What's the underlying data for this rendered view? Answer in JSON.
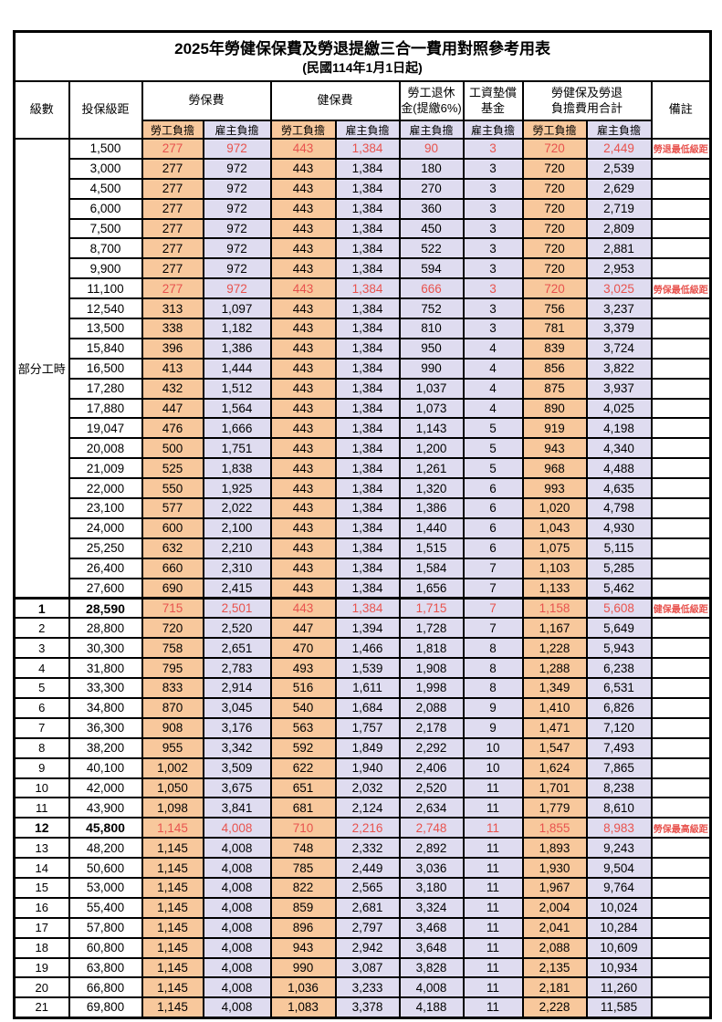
{
  "title": "2025年勞健保保費及勞退提繳三合一費用對照參考用表",
  "subtitle": "(民國114年1月1日起)",
  "header": {
    "level": "級數",
    "bracket": "投保級距",
    "labor_ins": "勞保費",
    "health_ins": "健保費",
    "pension_line1": "勞工退休",
    "pension_line2": "金(提繳6%)",
    "wage_fund_line1": "工資墊償",
    "wage_fund_line2": "基金",
    "total_line1": "勞健保及勞退",
    "total_line2": "負擔費用合計",
    "remarks": "備註",
    "employee": "勞工負擔",
    "employer": "雇主負擔"
  },
  "colors": {
    "employee_bg": "#F8C89C",
    "employer_bg": "#DFDCF0",
    "highlight_text": "#E8534E"
  },
  "part_time_label": "部分工時",
  "part_time_rowspan": 23,
  "rows": [
    {
      "level": "",
      "bracket": "1,500",
      "values": [
        "277",
        "972",
        "443",
        "1,384",
        "90",
        "3",
        "720",
        "2,449"
      ],
      "remark": "勞退最低級距",
      "highlight": true,
      "bold": false,
      "thick_top": false
    },
    {
      "level": "",
      "bracket": "3,000",
      "values": [
        "277",
        "972",
        "443",
        "1,384",
        "180",
        "3",
        "720",
        "2,539"
      ],
      "remark": "",
      "highlight": false,
      "bold": false,
      "thick_top": false
    },
    {
      "level": "",
      "bracket": "4,500",
      "values": [
        "277",
        "972",
        "443",
        "1,384",
        "270",
        "3",
        "720",
        "2,629"
      ],
      "remark": "",
      "highlight": false,
      "bold": false,
      "thick_top": false
    },
    {
      "level": "",
      "bracket": "6,000",
      "values": [
        "277",
        "972",
        "443",
        "1,384",
        "360",
        "3",
        "720",
        "2,719"
      ],
      "remark": "",
      "highlight": false,
      "bold": false,
      "thick_top": false
    },
    {
      "level": "",
      "bracket": "7,500",
      "values": [
        "277",
        "972",
        "443",
        "1,384",
        "450",
        "3",
        "720",
        "2,809"
      ],
      "remark": "",
      "highlight": false,
      "bold": false,
      "thick_top": false
    },
    {
      "level": "",
      "bracket": "8,700",
      "values": [
        "277",
        "972",
        "443",
        "1,384",
        "522",
        "3",
        "720",
        "2,881"
      ],
      "remark": "",
      "highlight": false,
      "bold": false,
      "thick_top": false
    },
    {
      "level": "",
      "bracket": "9,900",
      "values": [
        "277",
        "972",
        "443",
        "1,384",
        "594",
        "3",
        "720",
        "2,953"
      ],
      "remark": "",
      "highlight": false,
      "bold": false,
      "thick_top": false
    },
    {
      "level": "",
      "bracket": "11,100",
      "values": [
        "277",
        "972",
        "443",
        "1,384",
        "666",
        "3",
        "720",
        "3,025"
      ],
      "remark": "勞保最低級距",
      "highlight": true,
      "bold": false,
      "thick_top": false
    },
    {
      "level": "",
      "bracket": "12,540",
      "values": [
        "313",
        "1,097",
        "443",
        "1,384",
        "752",
        "3",
        "756",
        "3,237"
      ],
      "remark": "",
      "highlight": false,
      "bold": false,
      "thick_top": false
    },
    {
      "level": "",
      "bracket": "13,500",
      "values": [
        "338",
        "1,182",
        "443",
        "1,384",
        "810",
        "3",
        "781",
        "3,379"
      ],
      "remark": "",
      "highlight": false,
      "bold": false,
      "thick_top": false
    },
    {
      "level": "",
      "bracket": "15,840",
      "values": [
        "396",
        "1,386",
        "443",
        "1,384",
        "950",
        "4",
        "839",
        "3,724"
      ],
      "remark": "",
      "highlight": false,
      "bold": false,
      "thick_top": false
    },
    {
      "level": "",
      "bracket": "16,500",
      "values": [
        "413",
        "1,444",
        "443",
        "1,384",
        "990",
        "4",
        "856",
        "3,822"
      ],
      "remark": "",
      "highlight": false,
      "bold": false,
      "thick_top": false
    },
    {
      "level": "",
      "bracket": "17,280",
      "values": [
        "432",
        "1,512",
        "443",
        "1,384",
        "1,037",
        "4",
        "875",
        "3,937"
      ],
      "remark": "",
      "highlight": false,
      "bold": false,
      "thick_top": false
    },
    {
      "level": "",
      "bracket": "17,880",
      "values": [
        "447",
        "1,564",
        "443",
        "1,384",
        "1,073",
        "4",
        "890",
        "4,025"
      ],
      "remark": "",
      "highlight": false,
      "bold": false,
      "thick_top": false
    },
    {
      "level": "",
      "bracket": "19,047",
      "values": [
        "476",
        "1,666",
        "443",
        "1,384",
        "1,143",
        "5",
        "919",
        "4,198"
      ],
      "remark": "",
      "highlight": false,
      "bold": false,
      "thick_top": false
    },
    {
      "level": "",
      "bracket": "20,008",
      "values": [
        "500",
        "1,751",
        "443",
        "1,384",
        "1,200",
        "5",
        "943",
        "4,340"
      ],
      "remark": "",
      "highlight": false,
      "bold": false,
      "thick_top": false
    },
    {
      "level": "",
      "bracket": "21,009",
      "values": [
        "525",
        "1,838",
        "443",
        "1,384",
        "1,261",
        "5",
        "968",
        "4,488"
      ],
      "remark": "",
      "highlight": false,
      "bold": false,
      "thick_top": false
    },
    {
      "level": "",
      "bracket": "22,000",
      "values": [
        "550",
        "1,925",
        "443",
        "1,384",
        "1,320",
        "6",
        "993",
        "4,635"
      ],
      "remark": "",
      "highlight": false,
      "bold": false,
      "thick_top": false
    },
    {
      "level": "",
      "bracket": "23,100",
      "values": [
        "577",
        "2,022",
        "443",
        "1,384",
        "1,386",
        "6",
        "1,020",
        "4,798"
      ],
      "remark": "",
      "highlight": false,
      "bold": false,
      "thick_top": false
    },
    {
      "level": "",
      "bracket": "24,000",
      "values": [
        "600",
        "2,100",
        "443",
        "1,384",
        "1,440",
        "6",
        "1,043",
        "4,930"
      ],
      "remark": "",
      "highlight": false,
      "bold": false,
      "thick_top": false
    },
    {
      "level": "",
      "bracket": "25,250",
      "values": [
        "632",
        "2,210",
        "443",
        "1,384",
        "1,515",
        "6",
        "1,075",
        "5,115"
      ],
      "remark": "",
      "highlight": false,
      "bold": false,
      "thick_top": false
    },
    {
      "level": "",
      "bracket": "26,400",
      "values": [
        "660",
        "2,310",
        "443",
        "1,384",
        "1,584",
        "7",
        "1,103",
        "5,285"
      ],
      "remark": "",
      "highlight": false,
      "bold": false,
      "thick_top": false
    },
    {
      "level": "",
      "bracket": "27,600",
      "values": [
        "690",
        "2,415",
        "443",
        "1,384",
        "1,656",
        "7",
        "1,133",
        "5,462"
      ],
      "remark": "",
      "highlight": false,
      "bold": false,
      "thick_top": false
    },
    {
      "level": "1",
      "bracket": "28,590",
      "values": [
        "715",
        "2,501",
        "443",
        "1,384",
        "1,715",
        "7",
        "1,158",
        "5,608"
      ],
      "remark": "健保最低級距",
      "highlight": true,
      "bold": true,
      "thick_top": true
    },
    {
      "level": "2",
      "bracket": "28,800",
      "values": [
        "720",
        "2,520",
        "447",
        "1,394",
        "1,728",
        "7",
        "1,167",
        "5,649"
      ],
      "remark": "",
      "highlight": false,
      "bold": false,
      "thick_top": false
    },
    {
      "level": "3",
      "bracket": "30,300",
      "values": [
        "758",
        "2,651",
        "470",
        "1,466",
        "1,818",
        "8",
        "1,228",
        "5,943"
      ],
      "remark": "",
      "highlight": false,
      "bold": false,
      "thick_top": false
    },
    {
      "level": "4",
      "bracket": "31,800",
      "values": [
        "795",
        "2,783",
        "493",
        "1,539",
        "1,908",
        "8",
        "1,288",
        "6,238"
      ],
      "remark": "",
      "highlight": false,
      "bold": false,
      "thick_top": false
    },
    {
      "level": "5",
      "bracket": "33,300",
      "values": [
        "833",
        "2,914",
        "516",
        "1,611",
        "1,998",
        "8",
        "1,349",
        "6,531"
      ],
      "remark": "",
      "highlight": false,
      "bold": false,
      "thick_top": false
    },
    {
      "level": "6",
      "bracket": "34,800",
      "values": [
        "870",
        "3,045",
        "540",
        "1,684",
        "2,088",
        "9",
        "1,410",
        "6,826"
      ],
      "remark": "",
      "highlight": false,
      "bold": false,
      "thick_top": false
    },
    {
      "level": "7",
      "bracket": "36,300",
      "values": [
        "908",
        "3,176",
        "563",
        "1,757",
        "2,178",
        "9",
        "1,471",
        "7,120"
      ],
      "remark": "",
      "highlight": false,
      "bold": false,
      "thick_top": false
    },
    {
      "level": "8",
      "bracket": "38,200",
      "values": [
        "955",
        "3,342",
        "592",
        "1,849",
        "2,292",
        "10",
        "1,547",
        "7,493"
      ],
      "remark": "",
      "highlight": false,
      "bold": false,
      "thick_top": false
    },
    {
      "level": "9",
      "bracket": "40,100",
      "values": [
        "1,002",
        "3,509",
        "622",
        "1,940",
        "2,406",
        "10",
        "1,624",
        "7,865"
      ],
      "remark": "",
      "highlight": false,
      "bold": false,
      "thick_top": false
    },
    {
      "level": "10",
      "bracket": "42,000",
      "values": [
        "1,050",
        "3,675",
        "651",
        "2,032",
        "2,520",
        "11",
        "1,701",
        "8,238"
      ],
      "remark": "",
      "highlight": false,
      "bold": false,
      "thick_top": false
    },
    {
      "level": "11",
      "bracket": "43,900",
      "values": [
        "1,098",
        "3,841",
        "681",
        "2,124",
        "2,634",
        "11",
        "1,779",
        "8,610"
      ],
      "remark": "",
      "highlight": false,
      "bold": false,
      "thick_top": false
    },
    {
      "level": "12",
      "bracket": "45,800",
      "values": [
        "1,145",
        "4,008",
        "710",
        "2,216",
        "2,748",
        "11",
        "1,855",
        "8,983"
      ],
      "remark": "勞保最高級距",
      "highlight": true,
      "bold": true,
      "thick_top": false
    },
    {
      "level": "13",
      "bracket": "48,200",
      "values": [
        "1,145",
        "4,008",
        "748",
        "2,332",
        "2,892",
        "11",
        "1,893",
        "9,243"
      ],
      "remark": "",
      "highlight": false,
      "bold": false,
      "thick_top": false
    },
    {
      "level": "14",
      "bracket": "50,600",
      "values": [
        "1,145",
        "4,008",
        "785",
        "2,449",
        "3,036",
        "11",
        "1,930",
        "9,504"
      ],
      "remark": "",
      "highlight": false,
      "bold": false,
      "thick_top": false
    },
    {
      "level": "15",
      "bracket": "53,000",
      "values": [
        "1,145",
        "4,008",
        "822",
        "2,565",
        "3,180",
        "11",
        "1,967",
        "9,764"
      ],
      "remark": "",
      "highlight": false,
      "bold": false,
      "thick_top": false
    },
    {
      "level": "16",
      "bracket": "55,400",
      "values": [
        "1,145",
        "4,008",
        "859",
        "2,681",
        "3,324",
        "11",
        "2,004",
        "10,024"
      ],
      "remark": "",
      "highlight": false,
      "bold": false,
      "thick_top": false
    },
    {
      "level": "17",
      "bracket": "57,800",
      "values": [
        "1,145",
        "4,008",
        "896",
        "2,797",
        "3,468",
        "11",
        "2,041",
        "10,284"
      ],
      "remark": "",
      "highlight": false,
      "bold": false,
      "thick_top": false
    },
    {
      "level": "18",
      "bracket": "60,800",
      "values": [
        "1,145",
        "4,008",
        "943",
        "2,942",
        "3,648",
        "11",
        "2,088",
        "10,609"
      ],
      "remark": "",
      "highlight": false,
      "bold": false,
      "thick_top": false
    },
    {
      "level": "19",
      "bracket": "63,800",
      "values": [
        "1,145",
        "4,008",
        "990",
        "3,087",
        "3,828",
        "11",
        "2,135",
        "10,934"
      ],
      "remark": "",
      "highlight": false,
      "bold": false,
      "thick_top": false
    },
    {
      "level": "20",
      "bracket": "66,800",
      "values": [
        "1,145",
        "4,008",
        "1,036",
        "3,233",
        "4,008",
        "11",
        "2,181",
        "11,260"
      ],
      "remark": "",
      "highlight": false,
      "bold": false,
      "thick_top": false
    },
    {
      "level": "21",
      "bracket": "69,800",
      "values": [
        "1,145",
        "4,008",
        "1,083",
        "3,378",
        "4,188",
        "11",
        "2,228",
        "11,585"
      ],
      "remark": "",
      "highlight": false,
      "bold": false,
      "thick_top": false
    }
  ]
}
